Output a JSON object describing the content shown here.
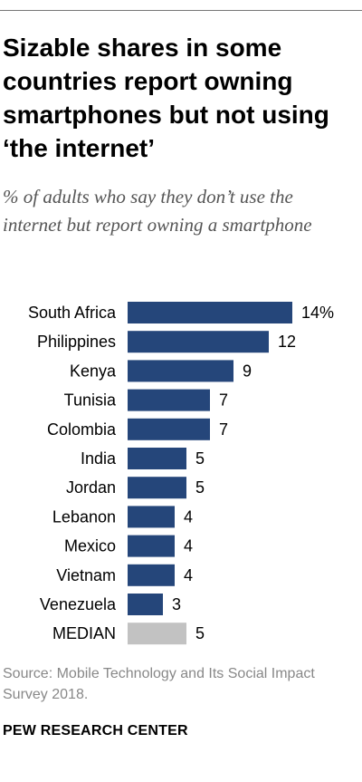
{
  "header": {
    "title": "Sizable shares in some countries report owning smartphones but not using ‘the internet’",
    "subtitle": "% of adults who say they don’t use the internet but report owning a smartphone"
  },
  "chart_data": {
    "type": "bar",
    "orientation": "horizontal",
    "categories": [
      "South Africa",
      "Philippines",
      "Kenya",
      "Tunisia",
      "Colombia",
      "India",
      "Jordan",
      "Lebanon",
      "Mexico",
      "Vietnam",
      "Venezuela",
      "MEDIAN"
    ],
    "values": [
      14,
      12,
      9,
      7,
      7,
      5,
      5,
      4,
      4,
      4,
      3,
      5
    ],
    "value_labels": [
      "14%",
      "12",
      "9",
      "7",
      "7",
      "5",
      "5",
      "4",
      "4",
      "4",
      "3",
      "5"
    ],
    "colors": {
      "country": "#25467a",
      "median": "#c2c2c2"
    },
    "xlim": [
      0,
      14
    ],
    "grid": false,
    "legend": "none"
  },
  "source": "Source: Mobile Technology and Its Social Impact Survey 2018.",
  "footer": "PEW RESEARCH CENTER"
}
